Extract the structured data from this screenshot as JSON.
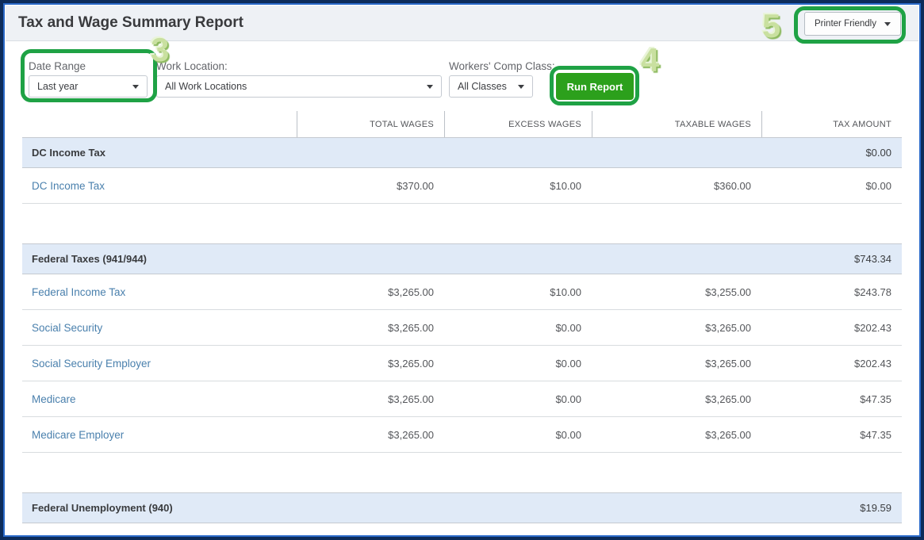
{
  "header": {
    "title": "Tax and Wage Summary Report",
    "printer_friendly_label": "Printer Friendly"
  },
  "filters": {
    "date_range_label": "Date Range",
    "date_range_value": "Last year",
    "work_location_label": "Work Location:",
    "work_location_value": "All Work Locations",
    "comp_class_label": "Workers' Comp Class:",
    "comp_class_value": "All Classes",
    "run_report_label": "Run Report"
  },
  "table": {
    "columns": [
      "TOTAL WAGES",
      "EXCESS WAGES",
      "TAXABLE WAGES",
      "TAX AMOUNT"
    ],
    "sections": [
      {
        "title": "DC Income Tax",
        "tax_amount": "$0.00",
        "rows": [
          {
            "name": "DC Income Tax",
            "total_wages": "$370.00",
            "excess_wages": "$10.00",
            "taxable_wages": "$360.00",
            "tax_amount": "$0.00"
          }
        ]
      },
      {
        "title": "Federal Taxes (941/944)",
        "tax_amount": "$743.34",
        "rows": [
          {
            "name": "Federal Income Tax",
            "total_wages": "$3,265.00",
            "excess_wages": "$10.00",
            "taxable_wages": "$3,255.00",
            "tax_amount": "$243.78"
          },
          {
            "name": "Social Security",
            "total_wages": "$3,265.00",
            "excess_wages": "$0.00",
            "taxable_wages": "$3,265.00",
            "tax_amount": "$202.43"
          },
          {
            "name": "Social Security Employer",
            "total_wages": "$3,265.00",
            "excess_wages": "$0.00",
            "taxable_wages": "$3,265.00",
            "tax_amount": "$202.43"
          },
          {
            "name": "Medicare",
            "total_wages": "$3,265.00",
            "excess_wages": "$0.00",
            "taxable_wages": "$3,265.00",
            "tax_amount": "$47.35"
          },
          {
            "name": "Medicare Employer",
            "total_wages": "$3,265.00",
            "excess_wages": "$0.00",
            "taxable_wages": "$3,265.00",
            "tax_amount": "$47.35"
          }
        ]
      },
      {
        "title": "Federal Unemployment (940)",
        "tax_amount": "$19.59",
        "rows": []
      }
    ]
  },
  "annotations": {
    "step3": "3",
    "step4": "4",
    "step5": "5"
  },
  "colors": {
    "brand_green": "#2ca01c",
    "annotation_green": "#1fa245",
    "link_blue": "#4a80ad",
    "section_row_bg": "#e0eaf7",
    "header_bar_bg": "#eef1f5",
    "frame_navy": "#0d2c5a",
    "frame_blue": "#2b6ac9"
  }
}
